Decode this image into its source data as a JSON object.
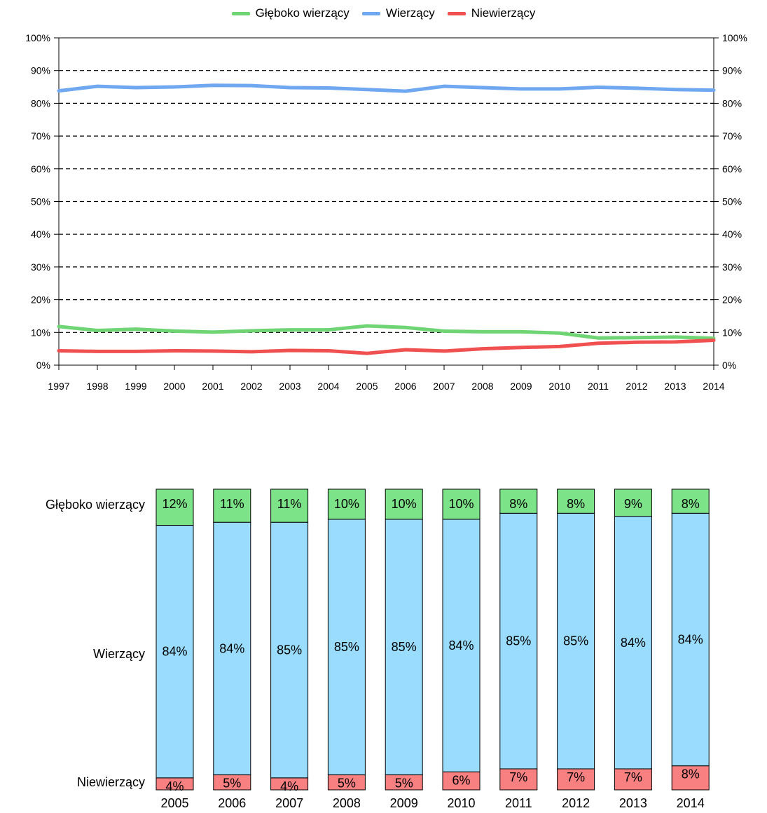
{
  "chart_data": [
    {
      "type": "line",
      "title": "",
      "xlabel": "",
      "ylabel": "",
      "x": [
        "1997",
        "1998",
        "1999",
        "2000",
        "2001",
        "2002",
        "2003",
        "2004",
        "2005",
        "2006",
        "2007",
        "2008",
        "2009",
        "2010",
        "2011",
        "2012",
        "2013",
        "2014"
      ],
      "ylim": [
        0,
        100
      ],
      "yticks": [
        "0%",
        "10%",
        "20%",
        "30%",
        "40%",
        "50%",
        "60%",
        "70%",
        "80%",
        "90%",
        "100%"
      ],
      "grid": true,
      "legend_position": "top-center",
      "series": [
        {
          "name": "Głęboko wierzący",
          "color": "#6fd474",
          "values": [
            11.8,
            10.6,
            11.0,
            10.4,
            10.1,
            10.5,
            10.8,
            10.8,
            12.0,
            11.5,
            10.4,
            10.2,
            10.2,
            9.8,
            8.3,
            8.4,
            8.6,
            8.2
          ]
        },
        {
          "name": "Wierzący",
          "color": "#6fa8f0",
          "values": [
            83.8,
            85.2,
            84.8,
            85.0,
            85.5,
            85.4,
            84.8,
            84.7,
            84.2,
            83.7,
            85.2,
            84.8,
            84.4,
            84.4,
            84.9,
            84.6,
            84.2,
            84.0
          ]
        },
        {
          "name": "Niewierzący",
          "color": "#f05050",
          "values": [
            4.4,
            4.2,
            4.2,
            4.4,
            4.3,
            4.1,
            4.5,
            4.4,
            3.6,
            4.7,
            4.3,
            5.0,
            5.4,
            5.7,
            6.7,
            7.0,
            7.1,
            7.6
          ]
        }
      ]
    },
    {
      "type": "bar",
      "stacked": true,
      "title": "",
      "xlabel": "",
      "ylabel": "",
      "categories": [
        "2005",
        "2006",
        "2007",
        "2008",
        "2009",
        "2010",
        "2011",
        "2012",
        "2013",
        "2014"
      ],
      "row_labels": [
        "Głęboko wierzący",
        "Wierzący",
        "Niewierzący"
      ],
      "series": [
        {
          "name": "Niewierzący",
          "color": "#f88080",
          "values": [
            4,
            5,
            4,
            5,
            5,
            6,
            7,
            7,
            7,
            8
          ],
          "labels": [
            "4%",
            "5%",
            "4%",
            "5%",
            "5%",
            "6%",
            "7%",
            "7%",
            "7%",
            "8%"
          ]
        },
        {
          "name": "Wierzący",
          "color": "#99dcfe",
          "values": [
            84,
            84,
            85,
            85,
            85,
            84,
            85,
            85,
            84,
            84
          ],
          "labels": [
            "84%",
            "84%",
            "85%",
            "85%",
            "85%",
            "84%",
            "85%",
            "85%",
            "84%",
            "84%"
          ]
        },
        {
          "name": "Głęboko wierzący",
          "color": "#7de388",
          "values": [
            12,
            11,
            11,
            10,
            10,
            10,
            8,
            8,
            9,
            8
          ],
          "labels": [
            "12%",
            "11%",
            "11%",
            "10%",
            "10%",
            "10%",
            "8%",
            "8%",
            "9%",
            "8%"
          ]
        }
      ]
    }
  ]
}
